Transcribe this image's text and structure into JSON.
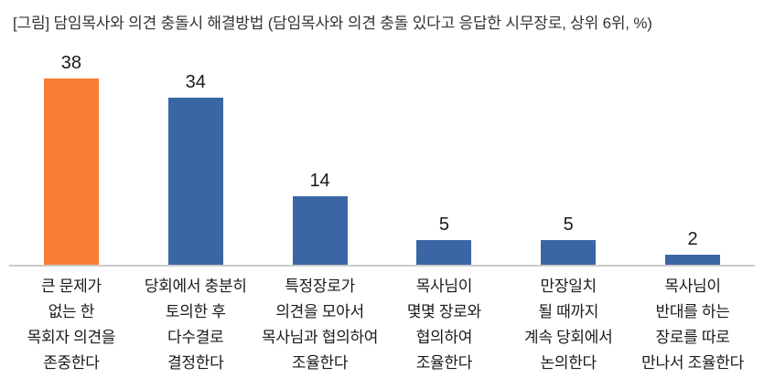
{
  "header": {
    "title": "[그림] 담임목사와 의견 충돌시 해결방법 (담임목사와 의견 충돌 있다고 응답한 시무장로, 상위 6위, %)"
  },
  "chart_data": {
    "type": "bar",
    "title": "[그림] 담임목사와 의견 충돌시 해결방법 (담임목사와 의견 충돌 있다고 응답한 시무장로, 상위 6위, %)",
    "categories": [
      "큰 문제가 없는 한 목회자 의견을 존중한다",
      "당회에서 충분히 토의한 후 다수결로 결정한다",
      "특정장로가 의견을 모아서 목사님과 협의하여 조율한다",
      "목사님이 몇몇 장로와 협의하여 조율한다",
      "만장일치 될 때까지 계속 당회에서 논의한다",
      "목사님이 반대를 하는 장로를 따로 만나서 조율한다"
    ],
    "category_lines": [
      [
        "큰 문제가",
        "없는 한",
        "목회자 의견을",
        "존중한다"
      ],
      [
        "당회에서 충분히",
        "토의한 후",
        "다수결로",
        "결정한다"
      ],
      [
        "특정장로가",
        "의견을 모아서",
        "목사님과 협의하여",
        "조율한다"
      ],
      [
        "목사님이",
        "몇몇 장로와",
        "협의하여",
        "조율한다"
      ],
      [
        "만장일치",
        "될 때까지",
        "계속 당회에서",
        "논의한다"
      ],
      [
        "목사님이",
        "반대를 하는",
        "장로를 따로",
        "만나서 조율한다"
      ]
    ],
    "values": [
      38,
      34,
      14,
      5,
      5,
      2
    ],
    "bar_colors": [
      "#F97D32",
      "#3A66A4",
      "#3A66A4",
      "#3A66A4",
      "#3A66A4",
      "#3A66A4"
    ],
    "highlight_color": "#F97D32",
    "default_color": "#3A66A4",
    "axis_line_color": "#CCCCCC",
    "value_label_color": "#1A1A1A",
    "xlabel": "",
    "ylabel": "",
    "ylim": [
      0,
      45
    ],
    "grid": false,
    "legend": "none",
    "value_labels_shown": true
  }
}
